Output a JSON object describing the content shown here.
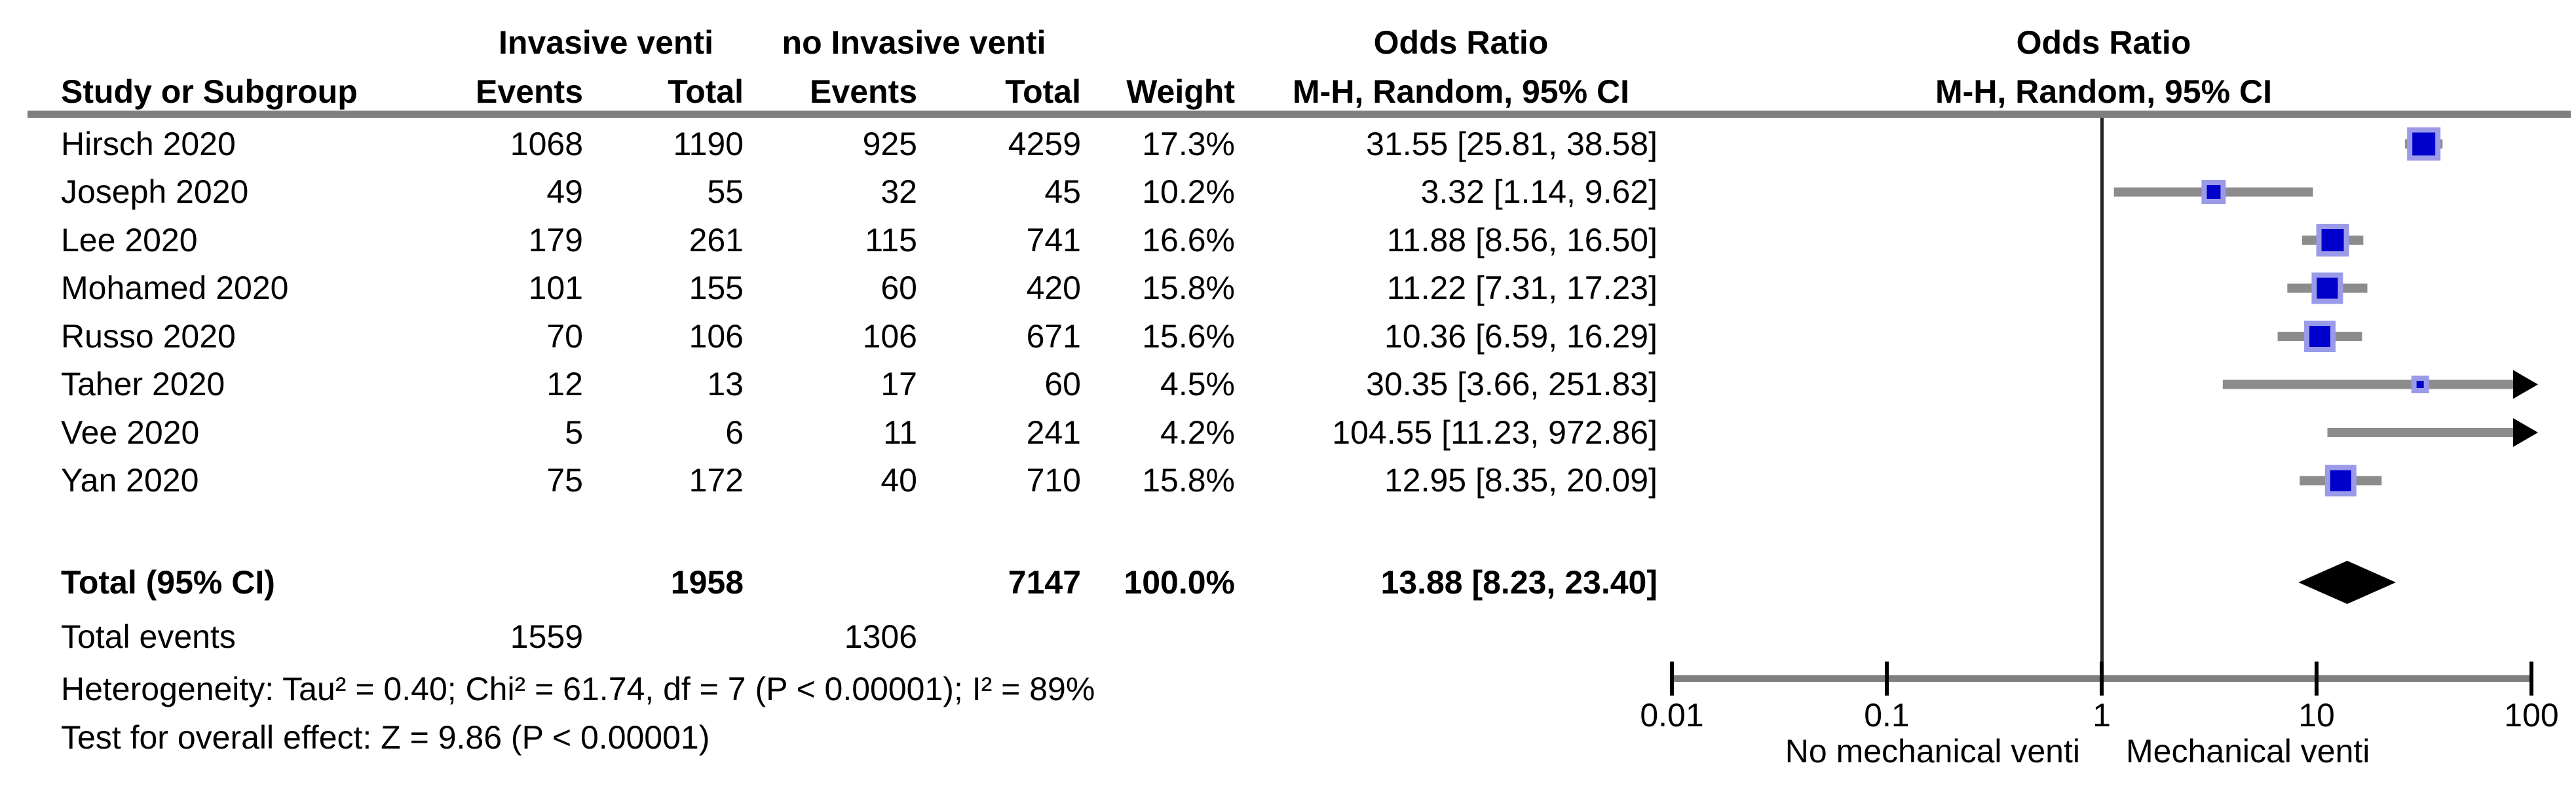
{
  "table": {
    "group_headers": {
      "experimental": "Invasive venti",
      "control": "no Invasive venti",
      "or_text_col": "Odds Ratio",
      "or_plot_col": "Odds Ratio"
    },
    "col_headers": {
      "study": "Study or Subgroup",
      "events1": "Events",
      "total1": "Total",
      "events2": "Events",
      "total2": "Total",
      "weight": "Weight",
      "mh_text": "M-H, Random, 95% CI",
      "mh_plot": "M-H, Random, 95% CI"
    },
    "rows": [
      {
        "study": "Hirsch 2020",
        "events1": "1068",
        "total1": "1190",
        "events2": "925",
        "total2": "4259",
        "weight": "17.3%",
        "or_ci": "31.55 [25.81, 38.58]"
      },
      {
        "study": "Joseph 2020",
        "events1": "49",
        "total1": "55",
        "events2": "32",
        "total2": "45",
        "weight": "10.2%",
        "or_ci": "3.32 [1.14, 9.62]"
      },
      {
        "study": "Lee 2020",
        "events1": "179",
        "total1": "261",
        "events2": "115",
        "total2": "741",
        "weight": "16.6%",
        "or_ci": "11.88 [8.56, 16.50]"
      },
      {
        "study": "Mohamed 2020",
        "events1": "101",
        "total1": "155",
        "events2": "60",
        "total2": "420",
        "weight": "15.8%",
        "or_ci": "11.22 [7.31, 17.23]"
      },
      {
        "study": "Russo 2020",
        "events1": "70",
        "total1": "106",
        "events2": "106",
        "total2": "671",
        "weight": "15.6%",
        "or_ci": "10.36 [6.59, 16.29]"
      },
      {
        "study": "Taher 2020",
        "events1": "12",
        "total1": "13",
        "events2": "17",
        "total2": "60",
        "weight": "4.5%",
        "or_ci": "30.35 [3.66, 251.83]"
      },
      {
        "study": "Vee 2020",
        "events1": "5",
        "total1": "6",
        "events2": "11",
        "total2": "241",
        "weight": "4.2%",
        "or_ci": "104.55 [11.23, 972.86]"
      },
      {
        "study": "Yan 2020",
        "events1": "75",
        "total1": "172",
        "events2": "40",
        "total2": "710",
        "weight": "15.8%",
        "or_ci": "12.95 [8.35, 20.09]"
      }
    ],
    "total_row": {
      "label": "Total (95% CI)",
      "total1": "1958",
      "total2": "7147",
      "weight": "100.0%",
      "or_ci": "13.88 [8.23, 23.40]"
    },
    "total_events_row": {
      "label": "Total events",
      "events1": "1559",
      "events2": "1306"
    },
    "heterogeneity": "Heterogeneity: Tau² = 0.40; Chi² = 61.74, df = 7 (P < 0.00001); I² = 89%",
    "overall_effect": "Test for overall effect: Z = 9.86 (P < 0.00001)"
  },
  "chart_data": {
    "type": "forest",
    "effect_measure": "Odds Ratio, M-H, Random, 95% CI",
    "x_scale": "log10",
    "xlim": [
      0.01,
      100
    ],
    "x_ticks": [
      0.01,
      0.1,
      1,
      10,
      100
    ],
    "null_line": 1,
    "left_label": "No mechanical venti",
    "right_label": "Mechanical venti",
    "studies": [
      {
        "study": "Hirsch 2020",
        "or": 31.55,
        "lo": 25.81,
        "hi": 38.58,
        "weight": 17.3
      },
      {
        "study": "Joseph 2020",
        "or": 3.32,
        "lo": 1.14,
        "hi": 9.62,
        "weight": 10.2
      },
      {
        "study": "Lee 2020",
        "or": 11.88,
        "lo": 8.56,
        "hi": 16.5,
        "weight": 16.6
      },
      {
        "study": "Mohamed 2020",
        "or": 11.22,
        "lo": 7.31,
        "hi": 17.23,
        "weight": 15.8
      },
      {
        "study": "Russo 2020",
        "or": 10.36,
        "lo": 6.59,
        "hi": 16.29,
        "weight": 15.6
      },
      {
        "study": "Taher 2020",
        "or": 30.35,
        "lo": 3.66,
        "hi": 251.83,
        "weight": 4.5
      },
      {
        "study": "Vee 2020",
        "or": 104.55,
        "lo": 11.23,
        "hi": 972.86,
        "weight": 4.2
      },
      {
        "study": "Yan 2020",
        "or": 12.95,
        "lo": 8.35,
        "hi": 20.09,
        "weight": 15.8
      }
    ],
    "total": {
      "label": "Total (95% CI)",
      "or": 13.88,
      "lo": 8.23,
      "hi": 23.4
    },
    "colors": {
      "marker": "#0000CC",
      "marker_halo": "#9a9ae8",
      "ci_line": "#8c8c8c",
      "axis": "#7f7f7f",
      "separator": "#7f7f7f",
      "null_line": "#262626",
      "summary": "#000000"
    }
  }
}
